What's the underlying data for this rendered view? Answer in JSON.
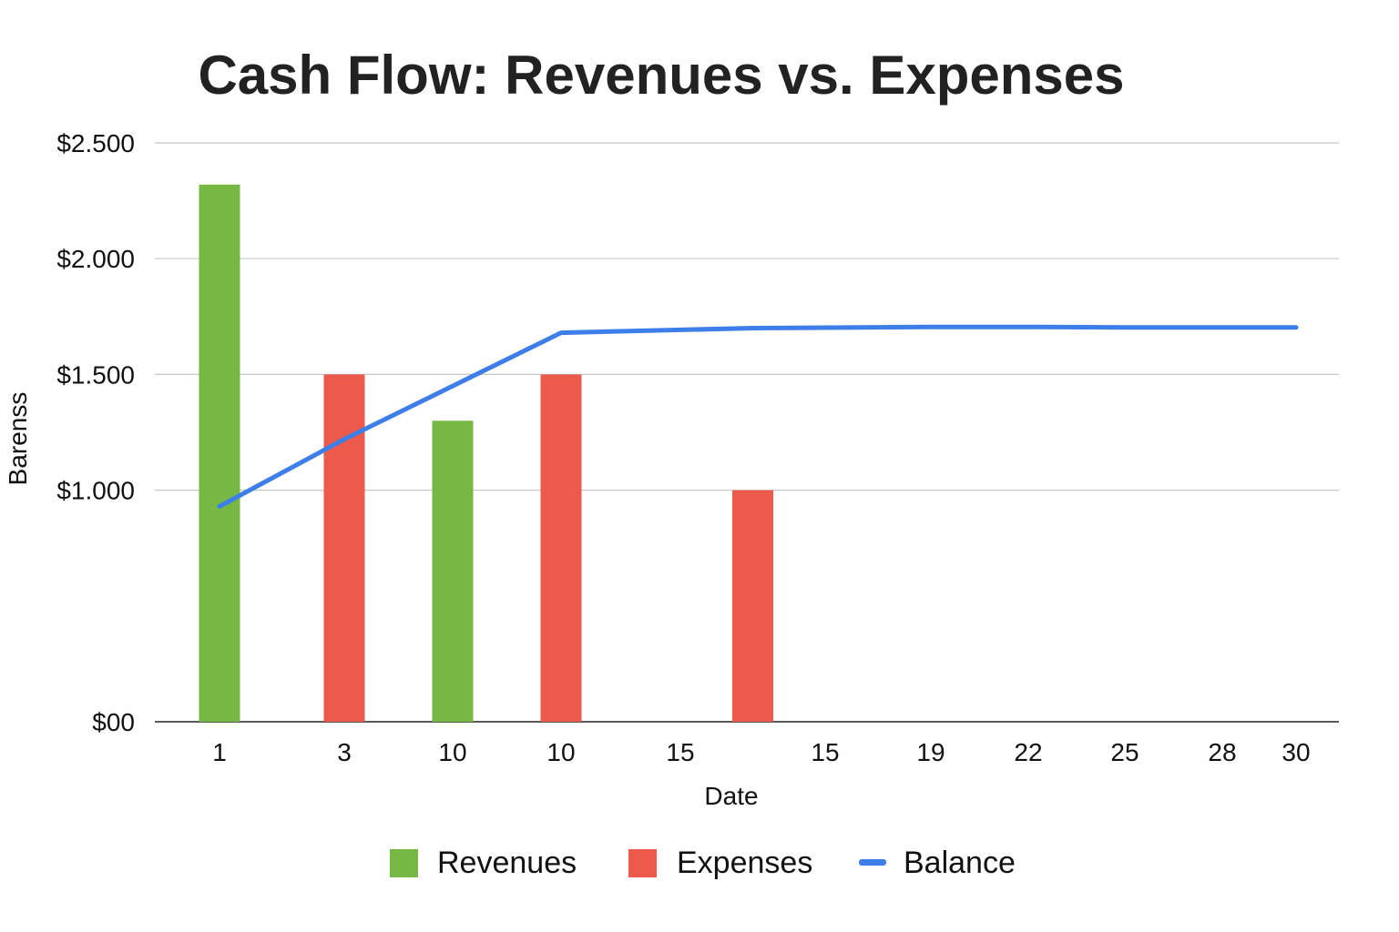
{
  "chart_data": {
    "type": "bar",
    "title": "Cash Flow: Revenues vs. Expenses",
    "xlabel": "Date",
    "ylabel": "Barenss",
    "categories": [
      "1",
      "3",
      "10",
      "10",
      "15",
      "15",
      "19",
      "22",
      "25",
      "28",
      "30"
    ],
    "y_ticks": [
      "$00",
      "$1.000",
      "$1.500",
      "$2.000",
      "$2.500"
    ],
    "ylim": [
      0,
      2500
    ],
    "grid": true,
    "legend_position": "bottom",
    "series": [
      {
        "name": "Revenues",
        "type": "bar",
        "color": "#76b843",
        "points": [
          {
            "category_index": 0,
            "value": 2320
          },
          {
            "category_index": 2,
            "value": 1300
          }
        ]
      },
      {
        "name": "Expenses",
        "type": "bar",
        "color": "#ec5a4c",
        "points": [
          {
            "category_index": 1,
            "value": 1500
          },
          {
            "category_index": 3,
            "value": 1500
          },
          {
            "category_index": 4.5,
            "value": 1000
          }
        ]
      },
      {
        "name": "Balance",
        "type": "line",
        "color": "#3d7ee8",
        "points": [
          {
            "category_index": 0,
            "value": 930
          },
          {
            "category_index": 1,
            "value": 1220
          },
          {
            "category_index": 2,
            "value": 1450
          },
          {
            "category_index": 3,
            "value": 1680
          },
          {
            "category_index": 4.5,
            "value": 1700
          },
          {
            "category_index": 6,
            "value": 1705
          },
          {
            "category_index": 7,
            "value": 1705
          },
          {
            "category_index": 8,
            "value": 1703
          },
          {
            "category_index": 9,
            "value": 1703
          },
          {
            "category_index": 10,
            "value": 1703
          }
        ]
      }
    ]
  }
}
